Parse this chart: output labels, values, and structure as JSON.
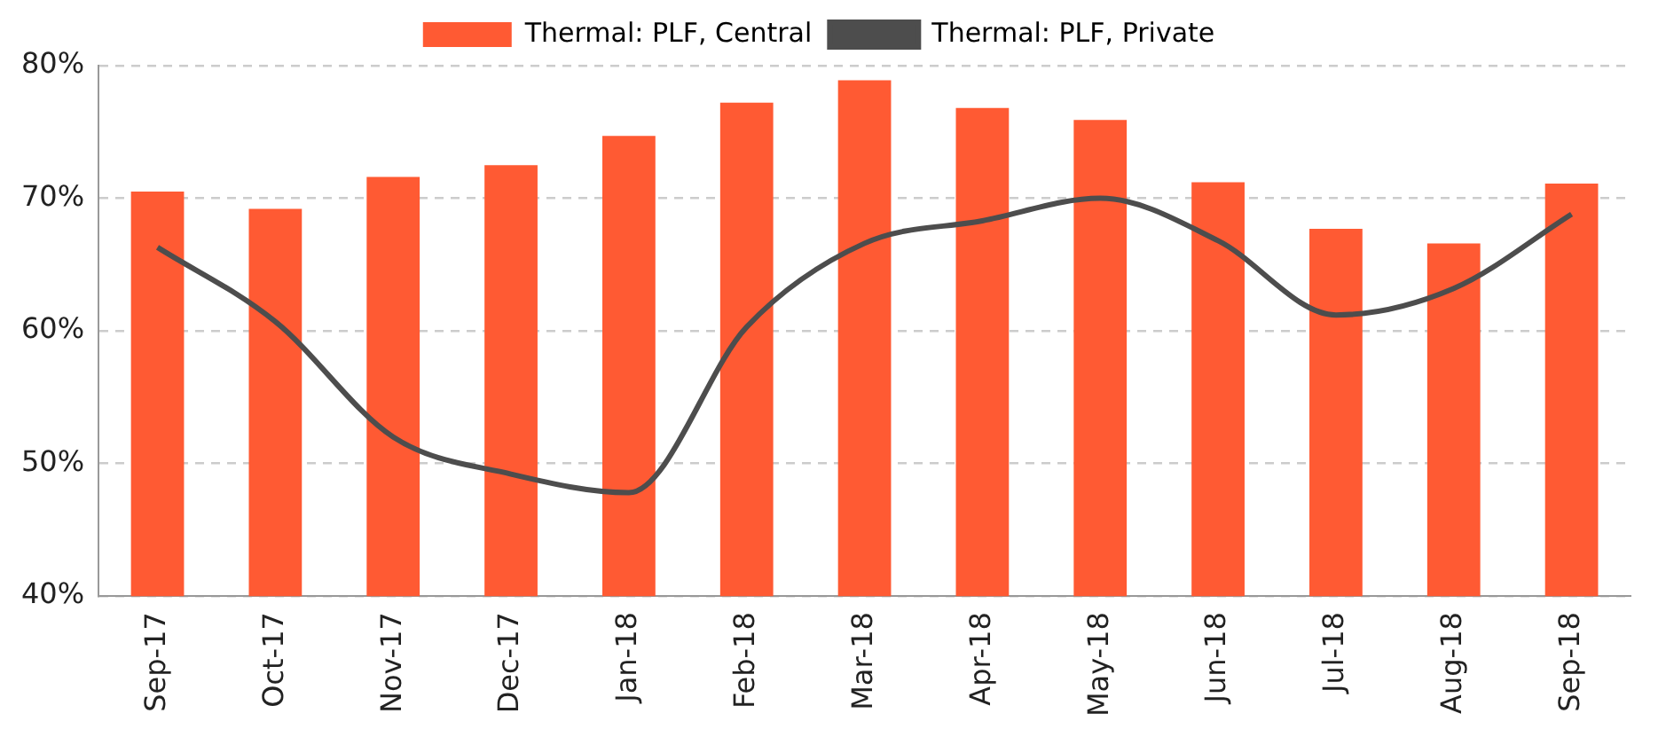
{
  "chart_data": {
    "type": "bar",
    "categories": [
      "Sep-17",
      "Oct-17",
      "Nov-17",
      "Dec-17",
      "Jan-18",
      "Feb-18",
      "Mar-18",
      "Apr-18",
      "May-18",
      "Jun-18",
      "Jul-18",
      "Aug-18",
      "Sep-18"
    ],
    "series": [
      {
        "name": "Thermal: PLF, Central",
        "color": "#ff5a33",
        "values": [
          70.5,
          69.2,
          71.6,
          72.5,
          74.7,
          77.2,
          78.9,
          76.8,
          75.9,
          71.2,
          67.7,
          66.6,
          71.1
        ]
      },
      {
        "name": "Thermal: PLF, Private",
        "type": "line",
        "color": "#4d4d4d",
        "values": [
          66.3,
          60.7,
          52.0,
          49.2,
          47.8,
          60.3,
          66.6,
          68.3,
          70.0,
          66.8,
          61.2,
          63.2,
          68.8
        ]
      }
    ],
    "ylim": [
      40,
      80
    ],
    "yticks": [
      {
        "value": 40,
        "label": "40%"
      },
      {
        "value": 50,
        "label": "50%"
      },
      {
        "value": 60,
        "label": "60%"
      },
      {
        "value": 70,
        "label": "70%"
      },
      {
        "value": 80,
        "label": "80%"
      }
    ],
    "grid": "y",
    "legend": "top",
    "marker": "none",
    "line_style": "solid"
  }
}
